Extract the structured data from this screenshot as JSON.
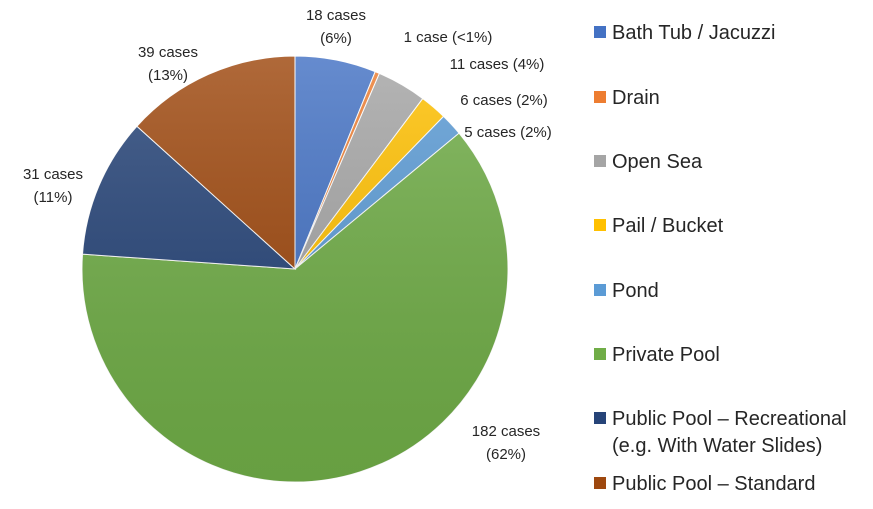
{
  "chart_data": {
    "type": "pie",
    "title": "",
    "legend_position": "right",
    "slices": [
      {
        "label": "Bath Tub / Jacuzzi",
        "legend_lines": [
          "Bath Tub / Jacuzzi"
        ],
        "value": 18,
        "color": "#4472C4",
        "data_label": [
          "18 cases",
          "(6%)"
        ]
      },
      {
        "label": "Drain",
        "legend_lines": [
          "Drain"
        ],
        "value": 1,
        "color": "#ED7D31",
        "data_label": [
          "1 case (<1%)"
        ]
      },
      {
        "label": "Open Sea",
        "legend_lines": [
          "Open Sea"
        ],
        "value": 11,
        "color": "#A5A5A5",
        "data_label": [
          "11 cases (4%)"
        ]
      },
      {
        "label": "Pail / Bucket",
        "legend_lines": [
          "Pail / Bucket"
        ],
        "value": 6,
        "color": "#FFC000",
        "data_label": [
          "6 cases (2%)"
        ]
      },
      {
        "label": "Pond",
        "legend_lines": [
          "Pond"
        ],
        "value": 5,
        "color": "#5B9BD5",
        "data_label": [
          "5 cases (2%)"
        ]
      },
      {
        "label": "Private Pool",
        "legend_lines": [
          "Private Pool"
        ],
        "value": 182,
        "color": "#70AD47",
        "data_label": [
          "182 cases",
          "(62%)"
        ]
      },
      {
        "label": "Public Pool – Recreational (e.g. With Water Slides)",
        "legend_lines": [
          "Public Pool – Recreational",
          "(e.g. With Water Slides)"
        ],
        "value": 31,
        "color": "#264478",
        "data_label": [
          "31 cases",
          "(11%)"
        ]
      },
      {
        "label": "Public Pool – Standard",
        "legend_lines": [
          "Public Pool – Standard"
        ],
        "value": 39,
        "color": "#9E480E",
        "data_label": [
          "39 cases",
          "(13%)"
        ]
      }
    ]
  }
}
